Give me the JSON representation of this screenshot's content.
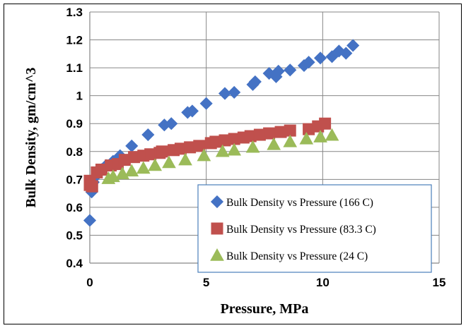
{
  "chart_data": {
    "type": "scatter",
    "title": "",
    "xlabel": "Pressure, MPa",
    "ylabel": "Bulk Density, gm/cm^3",
    "xlim": [
      0,
      15
    ],
    "ylim": [
      0.4,
      1.3
    ],
    "x_ticks": [
      "0",
      "5",
      "10",
      "15"
    ],
    "y_ticks": [
      "0.4",
      "0.5",
      "0.6",
      "0.7",
      "0.8",
      "0.9",
      "1",
      "1.1",
      "1.2",
      "1.3"
    ],
    "grid": true,
    "legend_position": "bottom-right inside plot",
    "series": [
      {
        "name": "Bulk Density vs Pressure (166 C)",
        "marker": "diamond",
        "color": "#4472C4",
        "points": [
          [
            0.0,
            0.553
          ],
          [
            0.08,
            0.655
          ],
          [
            0.15,
            0.69
          ],
          [
            0.3,
            0.715
          ],
          [
            0.5,
            0.735
          ],
          [
            0.7,
            0.75
          ],
          [
            1.0,
            0.765
          ],
          [
            1.3,
            0.785
          ],
          [
            1.8,
            0.82
          ],
          [
            2.5,
            0.86
          ],
          [
            3.2,
            0.895
          ],
          [
            3.5,
            0.9
          ],
          [
            4.2,
            0.94
          ],
          [
            4.4,
            0.945
          ],
          [
            5.0,
            0.972
          ],
          [
            5.8,
            1.008
          ],
          [
            6.2,
            1.012
          ],
          [
            7.0,
            1.04
          ],
          [
            7.1,
            1.05
          ],
          [
            7.7,
            1.08
          ],
          [
            8.0,
            1.068
          ],
          [
            8.1,
            1.088
          ],
          [
            8.6,
            1.092
          ],
          [
            9.2,
            1.108
          ],
          [
            9.4,
            1.12
          ],
          [
            9.9,
            1.135
          ],
          [
            10.4,
            1.14
          ],
          [
            10.7,
            1.16
          ],
          [
            11.0,
            1.152
          ],
          [
            11.3,
            1.18
          ]
        ]
      },
      {
        "name": "Bulk Density vs Pressure (83.3 C)",
        "marker": "square",
        "color": "#C0504D",
        "points": [
          [
            0.0,
            0.68
          ],
          [
            0.0,
            0.695
          ],
          [
            0.1,
            0.675
          ],
          [
            0.3,
            0.725
          ],
          [
            0.5,
            0.735
          ],
          [
            0.9,
            0.75
          ],
          [
            1.2,
            0.755
          ],
          [
            1.5,
            0.77
          ],
          [
            1.9,
            0.78
          ],
          [
            2.3,
            0.785
          ],
          [
            2.6,
            0.79
          ],
          [
            3.0,
            0.795
          ],
          [
            3.1,
            0.8
          ],
          [
            3.6,
            0.805
          ],
          [
            3.9,
            0.81
          ],
          [
            4.3,
            0.815
          ],
          [
            4.7,
            0.82
          ],
          [
            5.2,
            0.83
          ],
          [
            5.4,
            0.835
          ],
          [
            5.8,
            0.84
          ],
          [
            6.2,
            0.845
          ],
          [
            6.6,
            0.85
          ],
          [
            6.9,
            0.855
          ],
          [
            7.3,
            0.86
          ],
          [
            7.7,
            0.865
          ],
          [
            8.2,
            0.87
          ],
          [
            8.6,
            0.875
          ],
          [
            9.4,
            0.88
          ],
          [
            9.8,
            0.89
          ],
          [
            10.1,
            0.9
          ]
        ]
      },
      {
        "name": "Bulk Density vs Pressure (24 C)",
        "marker": "triangle",
        "color": "#9BBB59",
        "points": [
          [
            0.8,
            0.703
          ],
          [
            1.0,
            0.71
          ],
          [
            1.4,
            0.72
          ],
          [
            1.8,
            0.73
          ],
          [
            2.3,
            0.74
          ],
          [
            2.8,
            0.75
          ],
          [
            3.4,
            0.76
          ],
          [
            4.1,
            0.77
          ],
          [
            4.9,
            0.785
          ],
          [
            5.7,
            0.8
          ],
          [
            6.2,
            0.805
          ],
          [
            7.0,
            0.815
          ],
          [
            7.9,
            0.825
          ],
          [
            8.6,
            0.835
          ],
          [
            9.3,
            0.845
          ],
          [
            9.9,
            0.852
          ],
          [
            10.4,
            0.858
          ]
        ]
      }
    ]
  }
}
